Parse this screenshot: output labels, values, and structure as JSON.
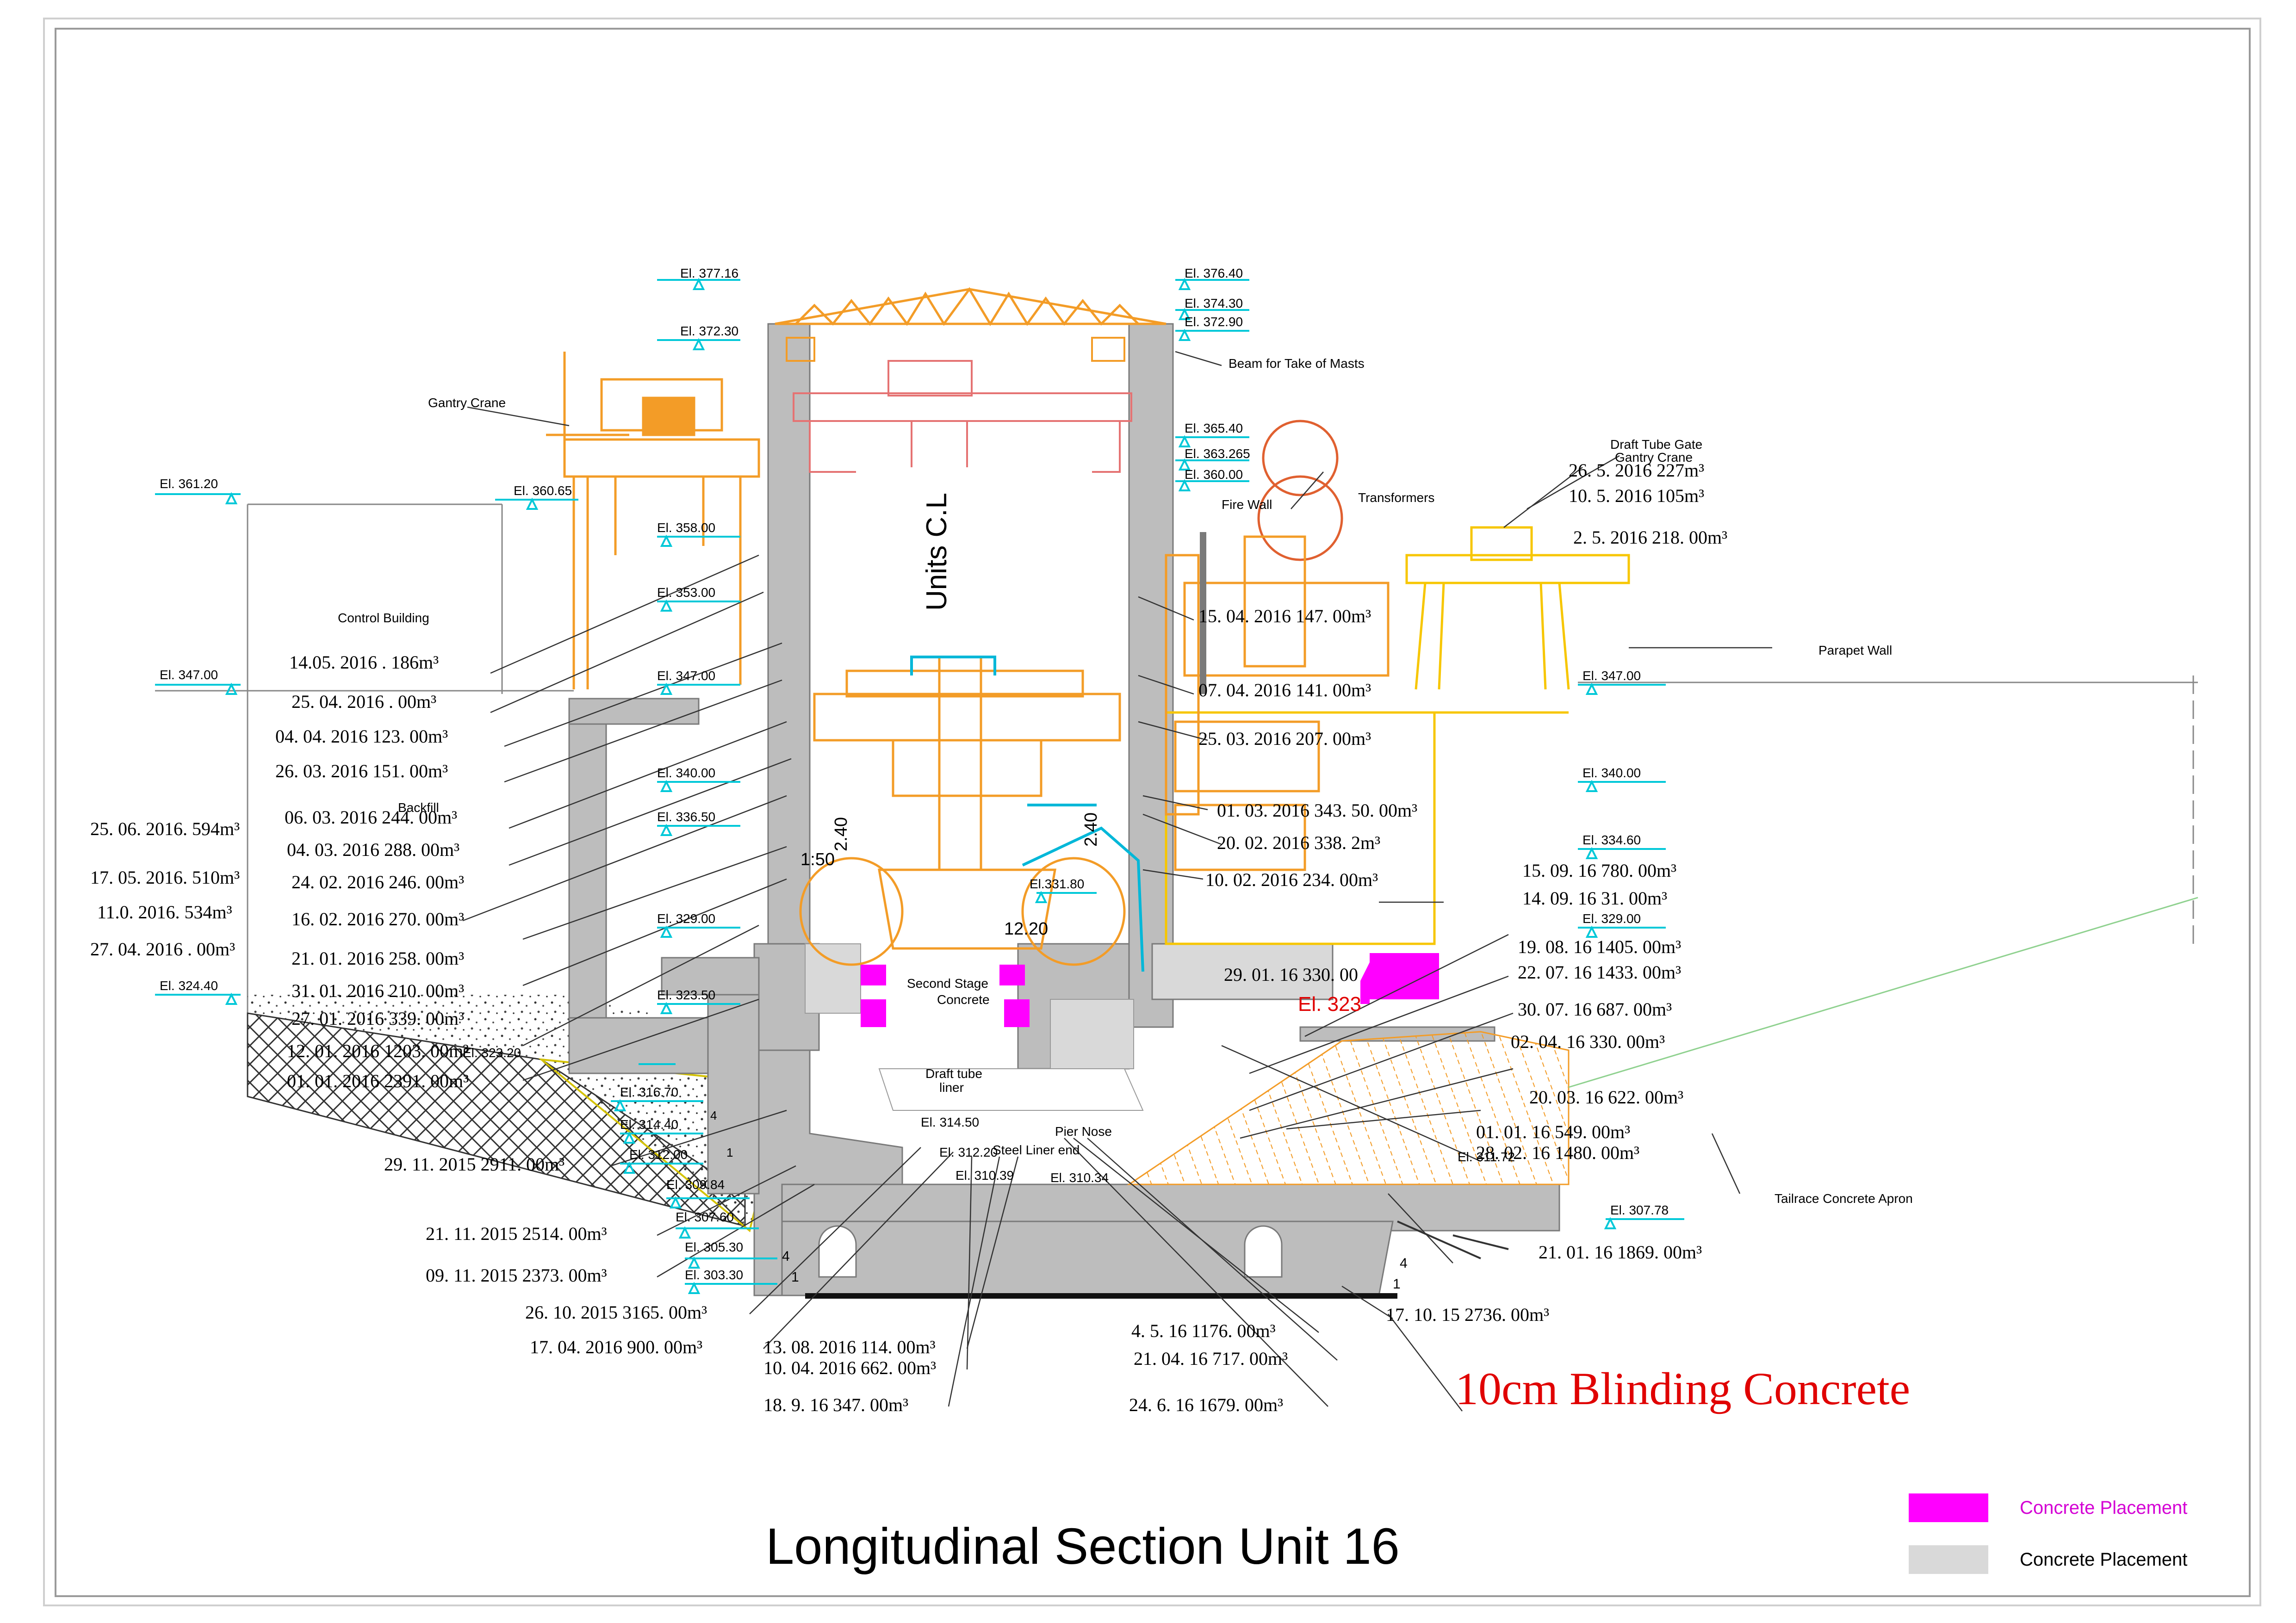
{
  "title": "Longitudinal Section Unit 16",
  "blinding_note": "10cm Blinding Concrete",
  "center_label": "Units C.L",
  "legend": [
    {
      "label": "Concrete Placement",
      "color": "#ff00ff",
      "text_color": "#d400d4"
    },
    {
      "label": "Concrete Placement",
      "color": "#d9d9d9",
      "text_color": "#000000"
    }
  ],
  "colors": {
    "structure": "#f39c27",
    "crane_red": "#e57373",
    "gate_crane": "#f7c600",
    "concrete": "#bdbdbd",
    "elevation": "#00c8d8",
    "leader": "#333333"
  },
  "elevations": {
    "e377": "El. 377.16",
    "e37640": "El. 376.40",
    "e37430": "El. 374.30",
    "e37290": "El. 372.90",
    "e37230": "El. 372.30",
    "e36540": "El. 365.40",
    "e363": "El. 363.265",
    "e360": "El. 360.00",
    "e36120": "El. 361.20",
    "e36065": "El. 360.65",
    "e358": "El. 358.00",
    "e353": "El. 353.00",
    "e347l": "El. 347.00",
    "e347c": "El. 347.00",
    "e347r": "El. 347.00",
    "e340c": "El. 340.00",
    "e340r": "El. 340.00",
    "e33650": "El. 336.50",
    "e33460": "El. 334.60",
    "e33180": "El.331.80",
    "e329c": "El. 329.00",
    "e329r": "El. 329.00",
    "e32440": "El. 324.40",
    "e32350": "El. 323.50",
    "e32320": "El. 323.20",
    "e31670": "El. 316.70",
    "e31440": "El. 314.40",
    "e31450": "El. 314.50",
    "e31220": "El. 312.20",
    "e312": "El. 312.00",
    "e31039": "El. 310.39",
    "e31034": "El. 310.34",
    "e30984": "El. 309.84",
    "e31172": "El. 311.72",
    "e30778": "El. 307.78",
    "e30760": "El. 307.60",
    "e30530": "El. 305.30",
    "e30330": "El. 303.30",
    "e323red": "El. 323"
  },
  "labels": {
    "gantry_crane": "Gantry Crane",
    "control_building": "Control Building",
    "beam_masts": "Beam for Take of Masts",
    "fire_wall": "Fire Wall",
    "transformers": "Transformers",
    "dt_gate_1": "Draft Tube Gate",
    "dt_gate_2": "Gantry Crane",
    "parapet": "Parapet Wall",
    "backfill": "Backfill",
    "second_stage_1": "Second Stage",
    "second_stage_2": "Concrete",
    "draft_tube_1": "Draft tube",
    "draft_tube_2": "liner",
    "pier_nose": "Pier Nose",
    "steel_liner": "Steel Liner end",
    "tailrace": "Tailrace Concrete Apron",
    "dim_240a": "2.40",
    "dim_240b": "2.40",
    "dim_150": "1:50",
    "dim_1220": "12.20",
    "slope_4a": "4",
    "slope_1a": "1",
    "slope_4b": "4",
    "slope_1b": "1",
    "slope_4c": "4",
    "slope_1c": "1"
  },
  "pours": {
    "p01": "14.05. 2016 . 186m³",
    "p02": "25. 04. 2016 . 00m³",
    "p03": "04. 04. 2016 123. 00m³",
    "p04": "26. 03. 2016 151. 00m³",
    "p05": "06. 03. 2016 244. 00m³",
    "p06": "25. 06. 2016. 594m³",
    "p07": "04. 03. 2016 288. 00m³",
    "p08": "17. 05. 2016. 510m³",
    "p09": "24. 02. 2016 246. 00m³",
    "p10": "11.0. 2016. 534m³",
    "p11": "16. 02. 2016 270. 00m³",
    "p12": "27. 04. 2016 . 00m³",
    "p13": "21. 01. 2016 258. 00m³",
    "p14": "31. 01. 2016 210. 00m³",
    "p15": "27. 01. 2016 339. 00m³",
    "p16": "12. 01. 2016 1203. 00m³",
    "p17": "01. 01. 2016 2391. 00m³",
    "p18": "29. 11. 2015 2911. 00m³",
    "p19": "21. 11. 2015 2514. 00m³",
    "p20": "09. 11. 2015 2373. 00m³",
    "p21": "26. 10. 2015 3165. 00m³",
    "p22": "17. 04. 2016 900. 00m³",
    "p23": "13. 08. 2016 114. 00m³",
    "p24": "10. 04. 2016 662. 00m³",
    "p25": "18. 9. 16 347. 00m³",
    "p26": "4. 5. 16 1176. 00m³",
    "p27": "21. 04. 16 717. 00m³",
    "p28": "24. 6. 16 1679. 00m³",
    "p29": "17. 10. 15 2736. 00m³",
    "p30": "21. 01. 16 1869. 00m³",
    "p31": "28. 02. 16 1480. 00m³",
    "p32": "01. 01. 16 549. 00m³",
    "p33": "20. 03. 16 622. 00m³",
    "p34": "02. 04. 16 330. 00m³",
    "p35": "30. 07. 16 687. 00m³",
    "p36": "22. 07. 16 1433. 00m³",
    "p37": "19. 08. 16 1405. 00m³",
    "p38": "29. 01. 16 330. 00",
    "p39": "14. 09. 16 31. 00m³",
    "p40": "15. 09. 16 780. 00m³",
    "p41": "10. 02. 2016 234. 00m³",
    "p42": "20. 02. 2016 338. 2m³",
    "p43": "01. 03. 2016 343. 50. 00m³",
    "p44": "25. 03. 2016 207. 00m³",
    "p45": "07. 04. 2016 141. 00m³",
    "p46": "15. 04. 2016 147. 00m³",
    "p47": "26. 5. 2016 227m³",
    "p48": "10. 5. 2016 105m³",
    "p49": "2. 5. 2016 218. 00m³"
  }
}
